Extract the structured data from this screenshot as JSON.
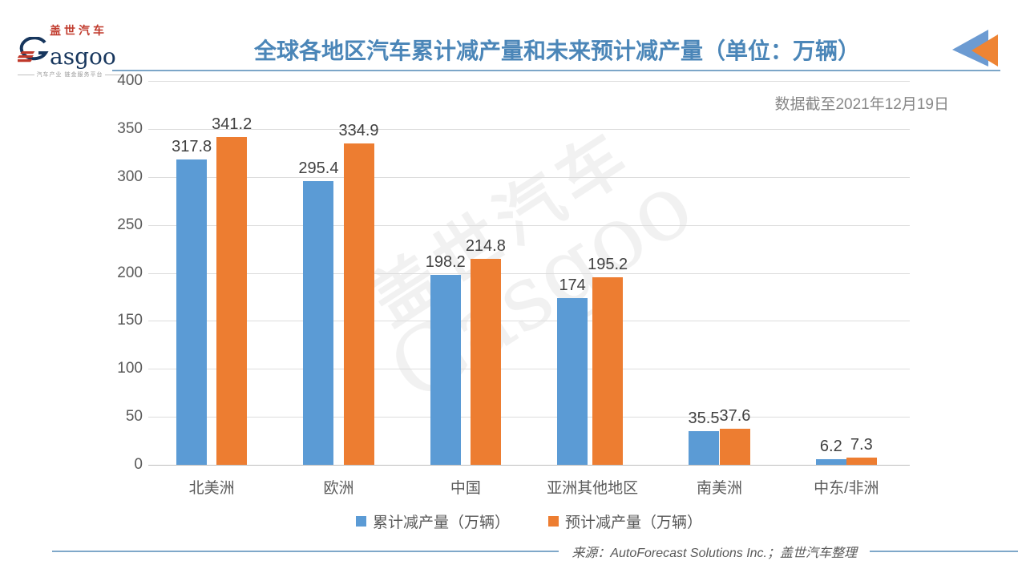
{
  "header": {
    "logo": {
      "cn": "盖世汽车",
      "en": "asgoo",
      "tagline": "汽车产业 链金服务平台"
    },
    "data_cutoff": "数据截至2021年12月19日"
  },
  "watermark": {
    "cn": "盖世汽车",
    "en": "Gasgoo"
  },
  "chart_data": {
    "type": "bar",
    "title": "全球各地区汽车累计减产量和未来预计减产量（单位：万辆）",
    "categories": [
      "北美洲",
      "欧洲",
      "中国",
      "亚洲其他地区",
      "南美洲",
      "中东/非洲"
    ],
    "series": [
      {
        "name": "累计减产量（万辆）",
        "color": "#5b9bd5",
        "values": [
          317.8,
          295.4,
          198.2,
          174,
          35.5,
          6.2
        ]
      },
      {
        "name": "预计减产量（万辆）",
        "color": "#ed7d31",
        "values": [
          341.2,
          334.9,
          214.8,
          195.2,
          37.6,
          7.3
        ]
      }
    ],
    "ylim": [
      0,
      400
    ],
    "yticks": [
      400,
      350,
      300,
      250,
      200,
      150,
      100,
      50,
      0
    ],
    "grid": true,
    "legend_position": "bottom"
  },
  "footer": {
    "source": "来源：AutoForecast Solutions Inc.；盖世汽车整理"
  },
  "colors": {
    "title": "#4b86b8",
    "bar_blue": "#5b9bd5",
    "bar_orange": "#ed7d31"
  }
}
